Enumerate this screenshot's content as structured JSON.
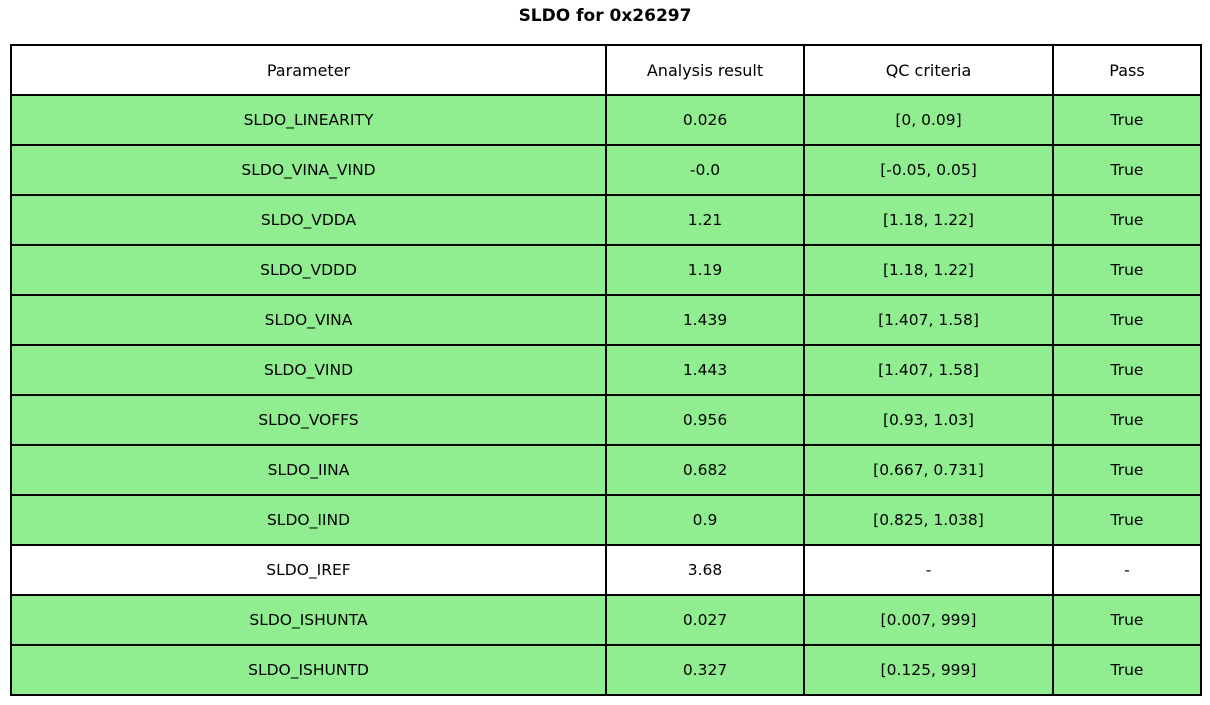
{
  "title": "SLDO for 0x26297",
  "colors": {
    "pass_row_green": "#90ee90",
    "neutral_row_white": "#ffffff",
    "border": "#000000",
    "text": "#000000"
  },
  "chart_data": {
    "type": "table",
    "title": "SLDO for 0x26297",
    "columns": [
      "Parameter",
      "Analysis result",
      "QC criteria",
      "Pass"
    ],
    "rows": [
      {
        "parameter": "SLDO_LINEARITY",
        "analysis_result": "0.026",
        "qc_criteria": "[0, 0.09]",
        "pass": "True",
        "highlight": "green"
      },
      {
        "parameter": "SLDO_VINA_VIND",
        "analysis_result": "-0.0",
        "qc_criteria": "[-0.05, 0.05]",
        "pass": "True",
        "highlight": "green"
      },
      {
        "parameter": "SLDO_VDDA",
        "analysis_result": "1.21",
        "qc_criteria": "[1.18, 1.22]",
        "pass": "True",
        "highlight": "green"
      },
      {
        "parameter": "SLDO_VDDD",
        "analysis_result": "1.19",
        "qc_criteria": "[1.18, 1.22]",
        "pass": "True",
        "highlight": "green"
      },
      {
        "parameter": "SLDO_VINA",
        "analysis_result": "1.439",
        "qc_criteria": "[1.407, 1.58]",
        "pass": "True",
        "highlight": "green"
      },
      {
        "parameter": "SLDO_VIND",
        "analysis_result": "1.443",
        "qc_criteria": "[1.407, 1.58]",
        "pass": "True",
        "highlight": "green"
      },
      {
        "parameter": "SLDO_VOFFS",
        "analysis_result": "0.956",
        "qc_criteria": "[0.93, 1.03]",
        "pass": "True",
        "highlight": "green"
      },
      {
        "parameter": "SLDO_IINA",
        "analysis_result": "0.682",
        "qc_criteria": "[0.667, 0.731]",
        "pass": "True",
        "highlight": "green"
      },
      {
        "parameter": "SLDO_IIND",
        "analysis_result": "0.9",
        "qc_criteria": "[0.825, 1.038]",
        "pass": "True",
        "highlight": "green"
      },
      {
        "parameter": "SLDO_IREF",
        "analysis_result": "3.68",
        "qc_criteria": "-",
        "pass": "-",
        "highlight": "white"
      },
      {
        "parameter": "SLDO_ISHUNTA",
        "analysis_result": "0.027",
        "qc_criteria": "[0.007, 999]",
        "pass": "True",
        "highlight": "green"
      },
      {
        "parameter": "SLDO_ISHUNTD",
        "analysis_result": "0.327",
        "qc_criteria": "[0.125, 999]",
        "pass": "True",
        "highlight": "green"
      }
    ]
  }
}
